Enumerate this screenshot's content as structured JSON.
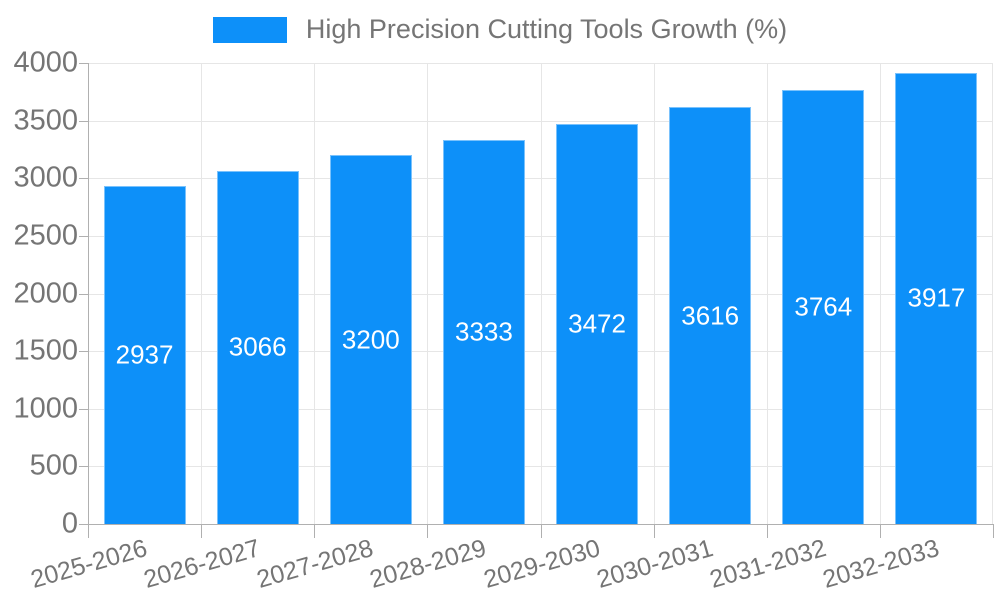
{
  "colors": {
    "bar": "#0d90f9",
    "grid": "#e6e6e6",
    "axis": "#b0b0b0",
    "tick_text": "#757575",
    "value_text": "#ffffff",
    "background": "#ffffff"
  },
  "chart_data": {
    "type": "bar",
    "title": "High Precision Cutting Tools Growth (%)",
    "categories": [
      "2025-2026",
      "2026-2027",
      "2027-2028",
      "2028-2029",
      "2029-2030",
      "2030-2031",
      "2031-2032",
      "2032-2033"
    ],
    "values": [
      2937,
      3066,
      3200,
      3333,
      3472,
      3616,
      3764,
      3917
    ],
    "xlabel": "",
    "ylabel": "",
    "ylim": [
      0,
      4000
    ],
    "yticks": [
      0,
      500,
      1000,
      1500,
      2000,
      2500,
      3000,
      3500,
      4000
    ],
    "grid": true,
    "legend_position": "top",
    "value_labels": "inside-center",
    "x_label_rotation_deg": -16
  }
}
